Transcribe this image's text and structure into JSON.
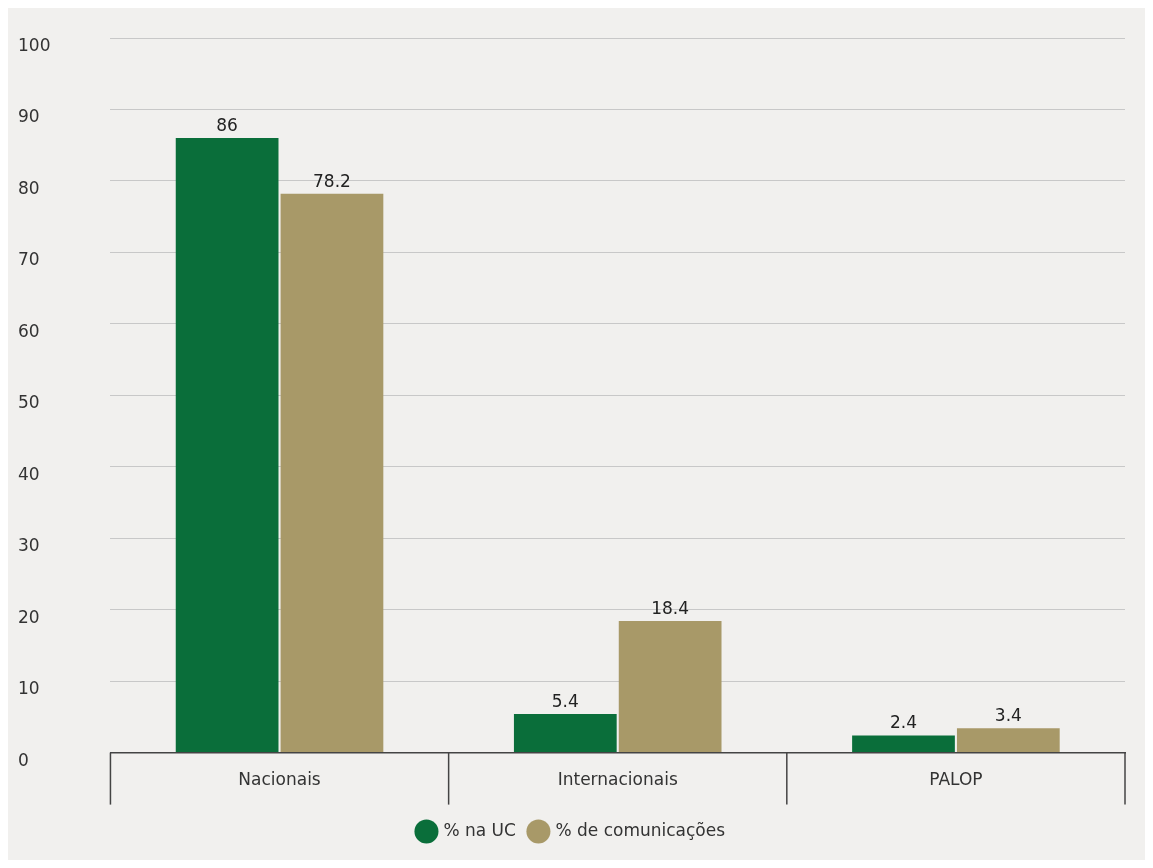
{
  "chart_data": {
    "type": "bar",
    "categories": [
      "Nacionais",
      "Internacionais",
      "PALOP"
    ],
    "series": [
      {
        "name": "% na UC",
        "color": "#0a6e3a",
        "values": [
          86,
          5.4,
          2.4
        ]
      },
      {
        "name": "% de comunicações",
        "color": "#a89968",
        "values": [
          78.2,
          18.4,
          3.4
        ]
      }
    ],
    "ylim": [
      0,
      100
    ],
    "yticks": [
      0,
      10,
      20,
      30,
      40,
      50,
      60,
      70,
      80,
      90,
      100
    ],
    "grid": "y",
    "legend": "bottom",
    "data_labels": true
  }
}
